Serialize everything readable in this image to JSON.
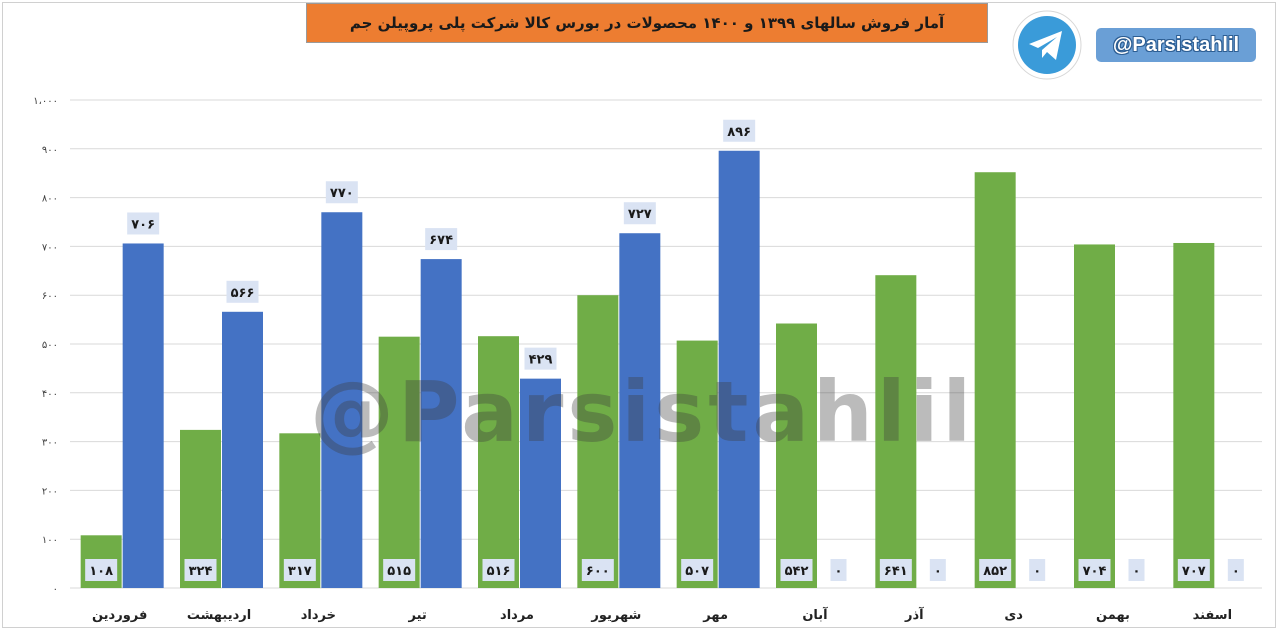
{
  "header": {
    "title": "آمار فروش سالهای ۱۳۹۹ و ۱۴۰۰ محصولات در بورس کالا شرکت پلی پروپیلن جم",
    "handle": "@Parsistahlil",
    "telegram_icon": "telegram-icon"
  },
  "watermark": "@Parsistahlil",
  "colors": {
    "series_1399": "#70ad47",
    "series_1400": "#4472c4",
    "title_bg": "#ed7d31",
    "label_bg": "#dae3f3"
  },
  "chart_data": {
    "type": "bar",
    "title": "آمار فروش سالهای ۱۳۹۹ و ۱۴۰۰ محصولات در بورس کالا شرکت پلی پروپیلن جم",
    "xlabel": "",
    "ylabel": "",
    "ylim": [
      0,
      1000
    ],
    "grid": true,
    "y_ticks": [
      0,
      100,
      200,
      300,
      400,
      500,
      600,
      700,
      800,
      900,
      1000
    ],
    "y_tick_labels": [
      "۰",
      "۱۰۰",
      "۲۰۰",
      "۳۰۰",
      "۴۰۰",
      "۵۰۰",
      "۶۰۰",
      "۷۰۰",
      "۸۰۰",
      "۹۰۰",
      "۱،۰۰۰"
    ],
    "categories": [
      "فروردین",
      "اردیبهشت",
      "خرداد",
      "تیر",
      "مرداد",
      "شهریور",
      "مهر",
      "آبان",
      "آذر",
      "دی",
      "بهمن",
      "اسفند"
    ],
    "series": [
      {
        "values": [
          108,
          324,
          317,
          515,
          516,
          600,
          507,
          542,
          641,
          852,
          704,
          707
        ],
        "labels": [
          "۱۰۸",
          "۳۲۴",
          "۳۱۷",
          "۵۱۵",
          "۵۱۶",
          "۶۰۰",
          "۵۰۷",
          "۵۴۲",
          "۶۴۱",
          "۸۵۲",
          "۷۰۴",
          "۷۰۷"
        ]
      },
      {
        "values": [
          706,
          566,
          770,
          674,
          429,
          727,
          896,
          0,
          0,
          0,
          0,
          0
        ],
        "labels": [
          "۷۰۶",
          "۵۶۶",
          "۷۷۰",
          "۶۷۴",
          "۴۲۹",
          "۷۲۷",
          "۸۹۶",
          "۰",
          "۰",
          "۰",
          "۰",
          "۰"
        ]
      }
    ]
  }
}
